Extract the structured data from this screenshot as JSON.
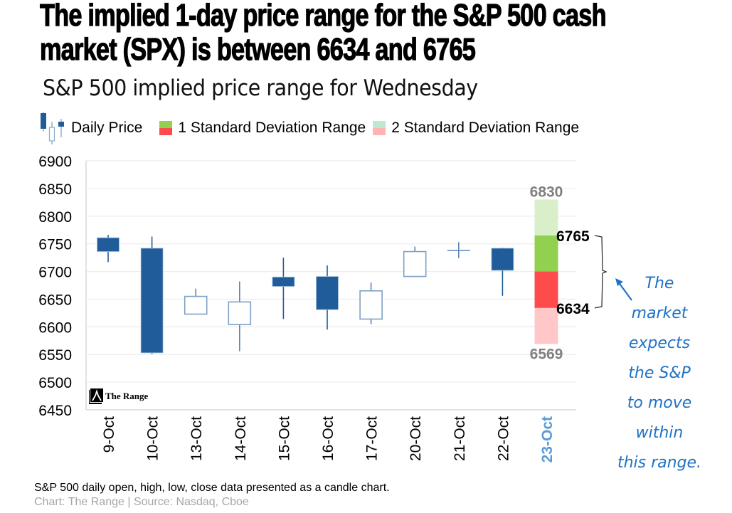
{
  "header": {
    "title_line1": "The implied 1-day price range for the S&P 500 cash",
    "title_line2": "market (SPX) is between 6634 and 6765",
    "subtitle": "S&P 500 implied price range for",
    "subtitle_day": "Wednesday"
  },
  "legend": {
    "daily_price": "Daily Price",
    "one_sd": "1 Standard Deviation Range",
    "two_sd": "2 Standard Deviation Range"
  },
  "annotation": {
    "lines": [
      "The",
      "market",
      "expects",
      "the S&P",
      "to move",
      "within",
      "this range."
    ]
  },
  "logo": {
    "label": "The Range"
  },
  "footer": {
    "description": "S&P 500 daily open, high, low, close data presented as a candle chart.",
    "source": "Chart: The Range | Source: Nasdaq, Cboe"
  },
  "colors": {
    "candle": "#1f5c99",
    "candle_hollow_border": "#7fa0c4",
    "one_sd_up": "#92d050",
    "one_sd_down": "#ff4b4b",
    "two_sd_up": "#d9efc9",
    "two_sd_down": "#ffc7c7",
    "highlight_tick": "#5b9bd5",
    "range_label_gray": "#808080",
    "annotation": "#1f72c4"
  },
  "chart_data": {
    "type": "candlestick",
    "title": "S&P 500 implied price range for Wednesday",
    "ylim": [
      6450,
      6900
    ],
    "yticks": [
      6900,
      6850,
      6800,
      6750,
      6700,
      6650,
      6600,
      6550,
      6500,
      6450
    ],
    "grid": true,
    "legend_position": "top",
    "categories": [
      "9-Oct",
      "10-Oct",
      "13-Oct",
      "14-Oct",
      "15-Oct",
      "16-Oct",
      "17-Oct",
      "20-Oct",
      "21-Oct",
      "22-Oct",
      "23-Oct"
    ],
    "candles": [
      {
        "date": "9-Oct",
        "open": 6761,
        "high": 6766,
        "low": 6717,
        "close": 6736
      },
      {
        "date": "10-Oct",
        "open": 6742,
        "high": 6763,
        "low": 6551,
        "close": 6553
      },
      {
        "date": "13-Oct",
        "open": 6623,
        "high": 6669,
        "low": 6622,
        "close": 6655
      },
      {
        "date": "14-Oct",
        "open": 6604,
        "high": 6682,
        "low": 6556,
        "close": 6645
      },
      {
        "date": "15-Oct",
        "open": 6690,
        "high": 6725,
        "low": 6614,
        "close": 6673
      },
      {
        "date": "16-Oct",
        "open": 6691,
        "high": 6711,
        "low": 6595,
        "close": 6631
      },
      {
        "date": "17-Oct",
        "open": 6614,
        "high": 6680,
        "low": 6605,
        "close": 6665
      },
      {
        "date": "20-Oct",
        "open": 6691,
        "high": 6745,
        "low": 6690,
        "close": 6736
      },
      {
        "date": "21-Oct",
        "open": 6738,
        "high": 6753,
        "low": 6724,
        "close": 6739
      },
      {
        "date": "22-Oct",
        "open": 6742,
        "high": 6743,
        "low": 6656,
        "close": 6702
      }
    ],
    "projection": {
      "date": "23-Oct",
      "center": 6700,
      "one_sd_low": 6634,
      "one_sd_high": 6765,
      "two_sd_low": 6569,
      "two_sd_high": 6830,
      "labels": {
        "two_sd_high": "6830",
        "one_sd_high": "6765",
        "one_sd_low": "6634",
        "two_sd_low": "6569"
      }
    }
  }
}
